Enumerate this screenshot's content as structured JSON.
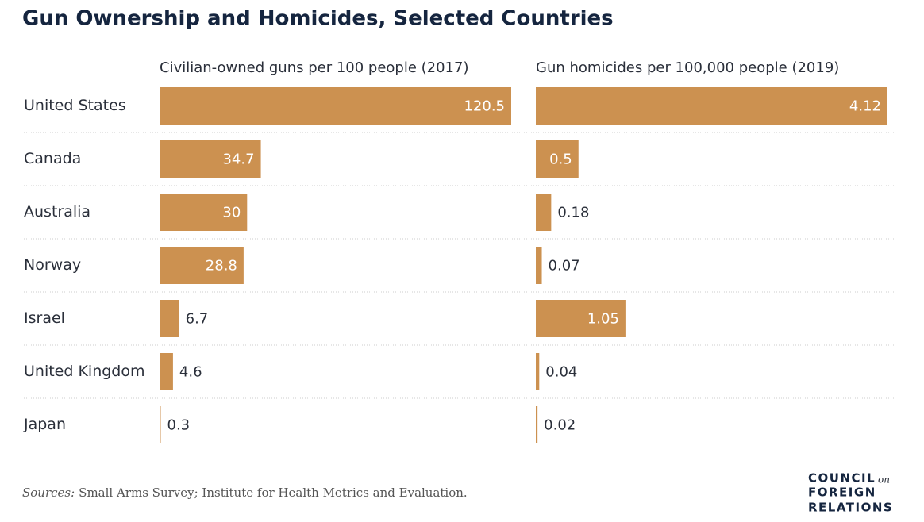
{
  "chart_data": {
    "type": "bar",
    "title": "Gun Ownership and Homicides, Selected Countries",
    "categories": [
      "United States",
      "Canada",
      "Australia",
      "Norway",
      "Israel",
      "United Kingdom",
      "Japan"
    ],
    "series": [
      {
        "name": "Civilian-owned guns per 100 people (2017)",
        "color": "#cc9150",
        "values": [
          120.5,
          34.7,
          30,
          28.8,
          6.7,
          4.6,
          0.3
        ]
      },
      {
        "name": "Gun homicides per 100,000 people (2019)",
        "color": "#cc9150",
        "values": [
          4.12,
          0.5,
          0.18,
          0.07,
          1.05,
          0.04,
          0.02
        ]
      }
    ]
  },
  "source": {
    "label": "Sources:",
    "text": "Small Arms Survey; Institute for Health Metrics and Evaluation."
  },
  "logo": {
    "line1": "COUNCIL",
    "on": "on",
    "line2": "FOREIGN",
    "line3": "RELATIONS"
  }
}
